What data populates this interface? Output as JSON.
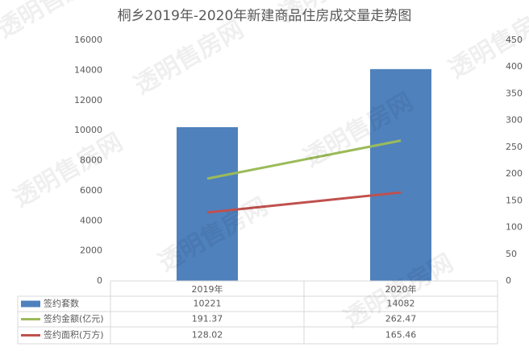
{
  "chart_data": {
    "type": "bar_line",
    "title": "桐乡2019年-2020年新建商品住房成交量走势图",
    "watermark": "透明售房网",
    "categories": [
      "2019年",
      "2020年"
    ],
    "series": [
      {
        "name": "签约套数",
        "color": "#4f81bd",
        "type": "bar",
        "axis": "y",
        "values": [
          10221,
          14082
        ]
      },
      {
        "name": "签约金额(亿元)",
        "color": "#9bbb59",
        "type": "line",
        "axis": "y2",
        "values": [
          191.37,
          262.47
        ]
      },
      {
        "name": "签约面积(万方)",
        "color": "#c0504d",
        "type": "line",
        "axis": "y2",
        "values": [
          128.02,
          165.46
        ]
      }
    ],
    "ylim": [
      0,
      16000
    ],
    "yticks": [
      0,
      2000,
      4000,
      6000,
      8000,
      10000,
      12000,
      14000,
      16000
    ],
    "y2lim": [
      0,
      450
    ],
    "y2ticks": [
      0,
      50,
      100,
      150,
      200,
      250,
      300,
      350,
      400,
      450
    ],
    "grid": false,
    "legend": "table"
  }
}
